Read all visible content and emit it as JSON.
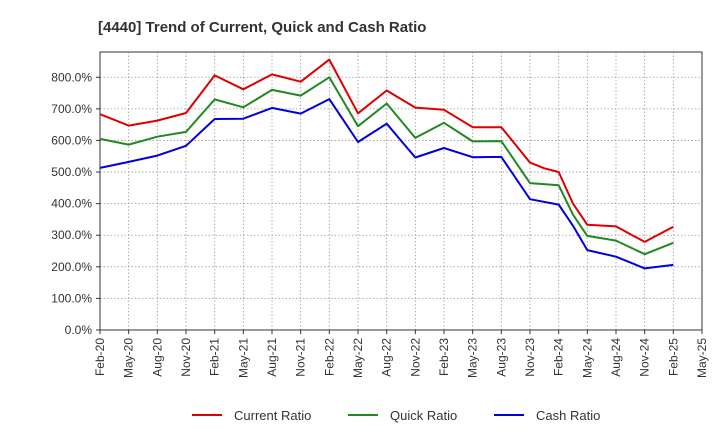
{
  "chart_data": {
    "type": "line",
    "title": "[4440]  Trend of Current, Quick and Cash Ratio",
    "xlabel": "",
    "ylabel": "",
    "categories": [
      "Feb-20",
      "May-20",
      "Aug-20",
      "Nov-20",
      "Feb-21",
      "May-21",
      "Aug-21",
      "Nov-21",
      "Feb-22",
      "May-22",
      "Aug-22",
      "Nov-22",
      "Feb-23",
      "May-23",
      "Aug-23",
      "Nov-23",
      "Feb-24",
      "May-24",
      "Aug-24",
      "Nov-24",
      "Feb-25",
      "May-25"
    ],
    "y_ticks": [
      "0.0%",
      "100.0%",
      "200.0%",
      "300.0%",
      "400.0%",
      "500.0%",
      "600.0%",
      "700.0%",
      "800.0%"
    ],
    "ylim": [
      0,
      880
    ],
    "grid": true,
    "legend_position": "bottom",
    "series": [
      {
        "name": "Current Ratio",
        "color": "#dd0000",
        "x": [
          0,
          1,
          2,
          3,
          4,
          5,
          6,
          7,
          8,
          9,
          10,
          11,
          12,
          13,
          14,
          15,
          15.5,
          16,
          16.5,
          17,
          18,
          19,
          20
        ],
        "values": [
          683,
          647,
          663,
          687,
          806,
          762,
          809,
          786,
          856,
          686,
          758,
          704,
          697,
          642,
          642,
          530,
          512,
          500,
          400,
          333,
          328,
          279,
          327
        ]
      },
      {
        "name": "Quick Ratio",
        "color": "#228822",
        "x": [
          0,
          1,
          2,
          3,
          4,
          5,
          6,
          7,
          8,
          9,
          10,
          11,
          12,
          13,
          14,
          15,
          16,
          16.5,
          17,
          18,
          19,
          20
        ],
        "values": [
          605,
          587,
          612,
          627,
          730,
          705,
          760,
          742,
          800,
          645,
          717,
          608,
          656,
          597,
          598,
          465,
          458,
          365,
          298,
          283,
          240,
          276
        ]
      },
      {
        "name": "Cash Ratio",
        "color": "#0000dd",
        "x": [
          0,
          1,
          2,
          3,
          4,
          5,
          6,
          7,
          8,
          9,
          10,
          11,
          12,
          13,
          14,
          15,
          16,
          16.5,
          17,
          18,
          19,
          20
        ],
        "values": [
          513,
          532,
          552,
          583,
          668,
          669,
          703,
          685,
          731,
          595,
          653,
          546,
          576,
          547,
          548,
          414,
          397,
          330,
          253,
          232,
          195,
          206
        ]
      }
    ]
  }
}
